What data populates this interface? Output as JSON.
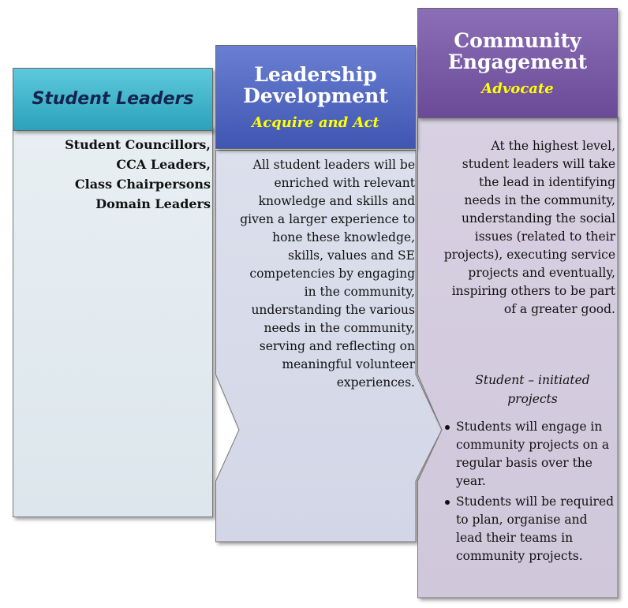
{
  "columns": [
    {
      "title": "Student Leaders",
      "colors": {
        "header_top": "#5ec9dc",
        "header_bottom": "#2aa2bb",
        "body": "#e1eaf0"
      },
      "items": [
        "Student Councillors,",
        "CCA Leaders,",
        "Class Chairpersons",
        "Domain Leaders"
      ]
    },
    {
      "title_line1": "Leadership",
      "title_line2": "Development",
      "subtitle": "Acquire and Act",
      "colors": {
        "header_top": "#6a7fd2",
        "header_bottom": "#3f56b2",
        "body": "#d7dae8"
      },
      "text": "All student leaders will be enriched with relevant knowledge and skills and given a larger experience to hone these knowledge, skills, values and SE competencies by engaging in the community, understanding the various needs in the community, serving and reflecting on meaningful volunteer experiences."
    },
    {
      "title_line1": "Community",
      "title_line2": "Engagement",
      "subtitle": "Advocate",
      "colors": {
        "header_top": "#8b6fb6",
        "header_bottom": "#6b4a98",
        "body": "#d3ccdd"
      },
      "text": "At the highest level, student leaders will take the lead in identifying needs in the community, understanding the social issues (related to their projects), executing service projects and eventually, inspiring others to be part of a greater good.",
      "projects_title": "Student – initiated projects",
      "bullets": [
        "Students will engage in community projects on a regular basis over the year.",
        "Students will be required to plan, organise and lead their teams in community projects."
      ]
    }
  ]
}
